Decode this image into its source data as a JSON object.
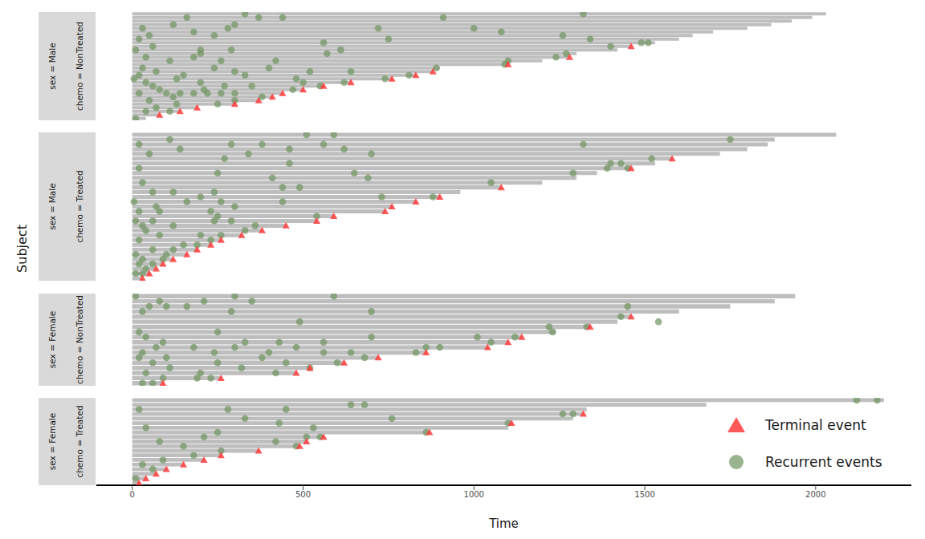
{
  "chart_data": {
    "type": "recurrent_event",
    "x_label": "Time",
    "y_label": "Subject",
    "xlim": [
      -105,
      2280
    ],
    "xticks": [
      0,
      500,
      1000,
      1500,
      2000
    ],
    "tick_labels": "x",
    "legend": "lower right",
    "series": [
      {
        "name": "Terminal event",
        "color": "#ff3b3b",
        "marker": "triangle"
      },
      {
        "name": "Recurrent events",
        "color": "#6f9460",
        "marker": "circle"
      }
    ],
    "panels": [
      {
        "strips": [
          "sex = Male",
          "chemo = NonTreated"
        ],
        "subjects": [
          {
            "time": 2030,
            "terminal": false,
            "events": [
              330,
              1320
            ]
          },
          {
            "time": 1990,
            "terminal": false,
            "events": [
              160,
              370,
              440,
              910
            ]
          },
          {
            "time": 1930,
            "terminal": false,
            "events": []
          },
          {
            "time": 1870,
            "terminal": false,
            "events": [
              120,
              300
            ]
          },
          {
            "time": 1800,
            "terminal": false,
            "events": [
              30,
              280,
              720,
              1000
            ]
          },
          {
            "time": 1700,
            "terminal": false,
            "events": [
              180,
              1080
            ]
          },
          {
            "time": 1640,
            "terminal": false,
            "events": [
              50,
              240,
              1260
            ]
          },
          {
            "time": 1600,
            "terminal": false,
            "events": [
              20,
              750,
              1340
            ]
          },
          {
            "time": 1530,
            "terminal": false,
            "events": [
              560,
              1490,
              1510
            ]
          },
          {
            "time": 1460,
            "terminal": true,
            "events": [
              60,
              1400
            ]
          },
          {
            "time": 1420,
            "terminal": false,
            "events": [
              10,
              200,
              290,
              610
            ]
          },
          {
            "time": 1300,
            "terminal": false,
            "events": [
              200,
              570,
              1270
            ]
          },
          {
            "time": 1280,
            "terminal": true,
            "events": [
              40,
              180,
              1240
            ]
          },
          {
            "time": 1200,
            "terminal": false,
            "events": [
              110,
              260,
              420,
              1100
            ]
          },
          {
            "time": 1100,
            "terminal": true,
            "events": [
              1090
            ]
          },
          {
            "time": 900,
            "terminal": false,
            "events": [
              30,
              240,
              400,
              890
            ]
          },
          {
            "time": 880,
            "terminal": true,
            "events": [
              70,
              300,
              520,
              640
            ]
          },
          {
            "time": 830,
            "terminal": true,
            "events": [
              20,
              150,
              330,
              810
            ]
          },
          {
            "time": 760,
            "terminal": true,
            "events": [
              5,
              130,
              480,
              740
            ]
          },
          {
            "time": 640,
            "terminal": true,
            "events": [
              40,
              200,
              500,
              620
            ]
          },
          {
            "time": 560,
            "terminal": true,
            "events": [
              60,
              270,
              350,
              550
            ]
          },
          {
            "time": 500,
            "terminal": true,
            "events": [
              80,
              210,
              470
            ]
          },
          {
            "time": 440,
            "terminal": true,
            "events": [
              20,
              100,
              140,
              180,
              220,
              260,
              300
            ]
          },
          {
            "time": 410,
            "terminal": true,
            "events": [
              120,
              380
            ]
          },
          {
            "time": 370,
            "terminal": true,
            "events": [
              50,
              300
            ]
          },
          {
            "time": 300,
            "terminal": true,
            "events": [
              130,
              250
            ]
          },
          {
            "time": 190,
            "terminal": true,
            "events": [
              70
            ]
          },
          {
            "time": 140,
            "terminal": true,
            "events": [
              40,
              110
            ]
          },
          {
            "time": 80,
            "terminal": true,
            "events": []
          },
          {
            "time": 40,
            "terminal": false,
            "events": [
              10
            ]
          }
        ]
      },
      {
        "strips": [
          "sex = Male",
          "chemo = Treated"
        ],
        "subjects": [
          {
            "time": 2060,
            "terminal": false,
            "events": [
              510,
              590
            ]
          },
          {
            "time": 1880,
            "terminal": false,
            "events": [
              110,
              1750
            ]
          },
          {
            "time": 1860,
            "terminal": false,
            "events": [
              20,
              290,
              380,
              560,
              1320
            ]
          },
          {
            "time": 1800,
            "terminal": false,
            "events": [
              140,
              460,
              620
            ]
          },
          {
            "time": 1720,
            "terminal": false,
            "events": [
              50,
              340,
              700
            ]
          },
          {
            "time": 1580,
            "terminal": true,
            "events": [
              270,
              1520
            ]
          },
          {
            "time": 1530,
            "terminal": false,
            "events": [
              460,
              1400,
              1430
            ]
          },
          {
            "time": 1460,
            "terminal": true,
            "events": [
              20,
              1390,
              1450
            ]
          },
          {
            "time": 1360,
            "terminal": false,
            "events": [
              250,
              650,
              1290
            ]
          },
          {
            "time": 1300,
            "terminal": false,
            "events": [
              410,
              690
            ]
          },
          {
            "time": 1200,
            "terminal": false,
            "events": [
              30,
              1050
            ]
          },
          {
            "time": 1080,
            "terminal": true,
            "events": [
              440,
              490
            ]
          },
          {
            "time": 960,
            "terminal": false,
            "events": [
              60,
              120,
              240
            ]
          },
          {
            "time": 900,
            "terminal": true,
            "events": [
              200,
              730,
              880
            ]
          },
          {
            "time": 830,
            "terminal": true,
            "events": [
              5,
              160,
              260,
              440
            ]
          },
          {
            "time": 760,
            "terminal": true,
            "events": [
              70,
              300
            ]
          },
          {
            "time": 740,
            "terminal": true,
            "events": [
              20,
              80,
              230
            ]
          },
          {
            "time": 590,
            "terminal": true,
            "events": [
              250,
              540
            ]
          },
          {
            "time": 540,
            "terminal": true,
            "events": [
              10,
              60,
              240,
              290
            ]
          },
          {
            "time": 450,
            "terminal": true,
            "events": [
              30,
              120,
              360
            ]
          },
          {
            "time": 380,
            "terminal": true,
            "events": [
              40,
              330
            ]
          },
          {
            "time": 320,
            "terminal": true,
            "events": [
              80,
              200,
              260
            ]
          },
          {
            "time": 260,
            "terminal": true,
            "events": [
              20,
              230
            ]
          },
          {
            "time": 230,
            "terminal": true,
            "events": [
              150,
              190
            ]
          },
          {
            "time": 190,
            "terminal": true,
            "events": [
              60,
              120
            ]
          },
          {
            "time": 160,
            "terminal": true,
            "events": [
              10,
              100
            ]
          },
          {
            "time": 120,
            "terminal": true,
            "events": [
              30,
              90
            ]
          },
          {
            "time": 90,
            "terminal": true,
            "events": [
              20,
              60
            ]
          },
          {
            "time": 70,
            "terminal": true,
            "events": [
              40
            ]
          },
          {
            "time": 50,
            "terminal": true,
            "events": [
              10,
              30
            ]
          },
          {
            "time": 30,
            "terminal": true,
            "events": []
          }
        ]
      },
      {
        "strips": [
          "sex = Female",
          "chemo = NonTreated"
        ],
        "subjects": [
          {
            "time": 1940,
            "terminal": false,
            "events": [
              10,
              300,
              590
            ]
          },
          {
            "time": 1880,
            "terminal": false,
            "events": [
              80,
              210,
              350
            ]
          },
          {
            "time": 1750,
            "terminal": false,
            "events": [
              50,
              100,
              160,
              1450
            ]
          },
          {
            "time": 1600,
            "terminal": false,
            "events": [
              30,
              290,
              700
            ]
          },
          {
            "time": 1460,
            "terminal": true,
            "events": [
              1430
            ]
          },
          {
            "time": 1420,
            "terminal": false,
            "events": [
              490,
              1540
            ]
          },
          {
            "time": 1340,
            "terminal": true,
            "events": [
              1220,
              1330
            ]
          },
          {
            "time": 1240,
            "terminal": false,
            "events": [
              20,
              250,
              1230
            ]
          },
          {
            "time": 1140,
            "terminal": true,
            "events": [
              40,
              700,
              1010,
              1120
            ]
          },
          {
            "time": 1100,
            "terminal": true,
            "events": [
              90,
              330,
              430,
              560,
              1050
            ]
          },
          {
            "time": 1040,
            "terminal": true,
            "events": [
              70,
              180,
              300,
              480,
              860,
              900
            ]
          },
          {
            "time": 860,
            "terminal": true,
            "events": [
              30,
              240,
              400,
              560,
              640,
              830
            ]
          },
          {
            "time": 720,
            "terminal": true,
            "events": [
              20,
              100,
              380,
              680
            ]
          },
          {
            "time": 620,
            "terminal": true,
            "events": [
              60,
              250,
              450,
              600
            ]
          },
          {
            "time": 520,
            "terminal": true,
            "events": [
              110,
              320,
              520
            ]
          },
          {
            "time": 480,
            "terminal": true,
            "events": [
              40,
              200,
              420
            ]
          },
          {
            "time": 260,
            "terminal": true,
            "events": [
              90,
              190,
              230
            ]
          },
          {
            "time": 90,
            "terminal": true,
            "events": [
              30,
              60
            ]
          }
        ]
      },
      {
        "strips": [
          "sex = Female",
          "chemo = Treated"
        ],
        "subjects": [
          {
            "time": 2200,
            "terminal": false,
            "events": [
              2120,
              2180
            ]
          },
          {
            "time": 1680,
            "terminal": false,
            "events": [
              640,
              680
            ]
          },
          {
            "time": 1330,
            "terminal": false,
            "events": [
              20,
              280,
              450
            ]
          },
          {
            "time": 1320,
            "terminal": true,
            "events": [
              1260,
              1290
            ]
          },
          {
            "time": 1290,
            "terminal": false,
            "events": [
              330,
              760
            ]
          },
          {
            "time": 1110,
            "terminal": true,
            "events": [
              430,
              1100
            ]
          },
          {
            "time": 1100,
            "terminal": false,
            "events": [
              40,
              530
            ]
          },
          {
            "time": 870,
            "terminal": true,
            "events": [
              250,
              860
            ]
          },
          {
            "time": 560,
            "terminal": true,
            "events": [
              210,
              510,
              550
            ]
          },
          {
            "time": 510,
            "terminal": true,
            "events": [
              80,
              420
            ]
          },
          {
            "time": 490,
            "terminal": true,
            "events": [
              150,
              480
            ]
          },
          {
            "time": 370,
            "terminal": true,
            "events": [
              260
            ]
          },
          {
            "time": 260,
            "terminal": true,
            "events": [
              180
            ]
          },
          {
            "time": 210,
            "terminal": true,
            "events": [
              90
            ]
          },
          {
            "time": 150,
            "terminal": true,
            "events": [
              30
            ]
          },
          {
            "time": 100,
            "terminal": true,
            "events": [
              60
            ]
          },
          {
            "time": 70,
            "terminal": true,
            "events": []
          },
          {
            "time": 40,
            "terminal": true,
            "events": [
              10
            ]
          },
          {
            "time": 20,
            "terminal": true,
            "events": []
          }
        ]
      }
    ]
  }
}
